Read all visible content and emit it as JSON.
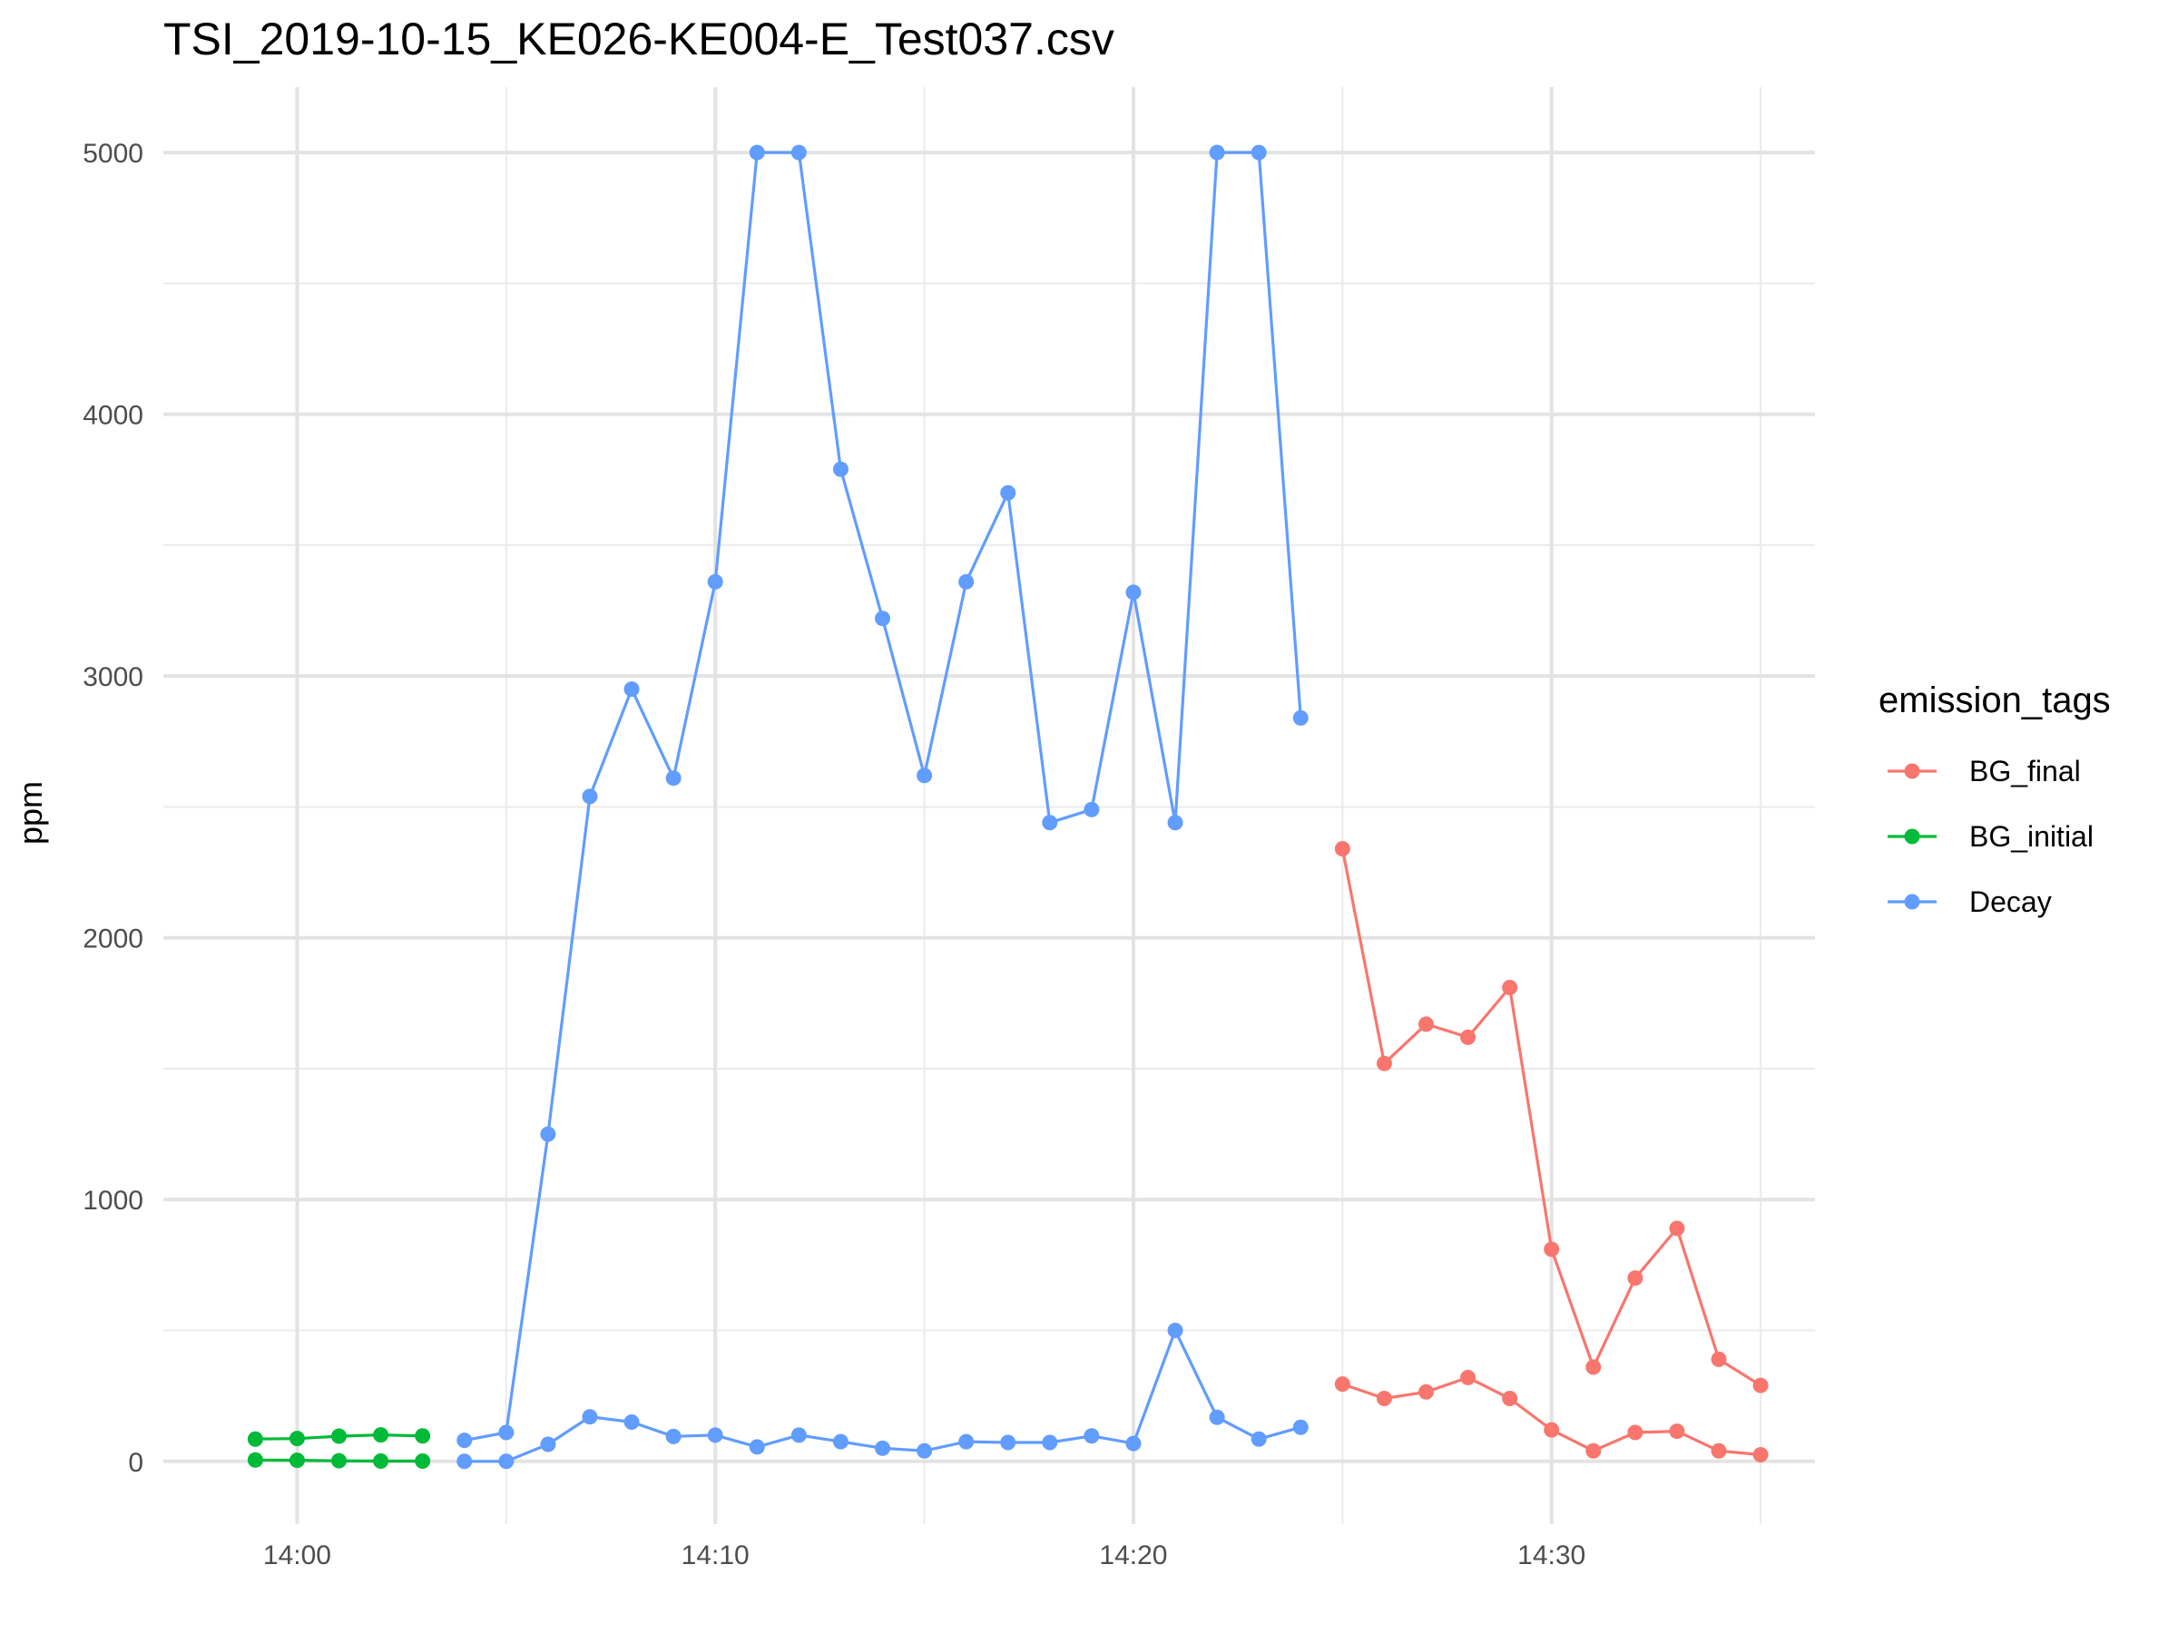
{
  "chart_data": {
    "type": "line",
    "title": "TSI_2019-10-15_KE026-KE004-E_Test037.csv",
    "xlabel": "",
    "ylabel": "ppm",
    "x_ticks": [
      "14:00",
      "14:10",
      "14:20",
      "14:30"
    ],
    "x_tick_minutes": [
      0,
      10,
      20,
      30
    ],
    "xlim_minutes": [
      -3.2,
      36.3
    ],
    "y_ticks": [
      0,
      1000,
      2000,
      3000,
      4000,
      5000
    ],
    "ylim": [
      -240,
      5250
    ],
    "grid": true,
    "legend": {
      "title": "emission_tags",
      "position": "right"
    },
    "colors": {
      "BG_final": "#F8766D",
      "BG_initial": "#00BA38",
      "Decay": "#619CFF"
    },
    "series": [
      {
        "name": "BG_initial",
        "color": "#00BA38",
        "x": [
          -1,
          0,
          1,
          2,
          3
        ],
        "y": [
          85,
          87,
          96,
          101,
          97
        ]
      },
      {
        "name": "BG_initial",
        "color": "#00BA38",
        "x": [
          -1,
          0,
          1,
          2,
          3
        ],
        "y": [
          5,
          4,
          2,
          1,
          1
        ]
      },
      {
        "name": "Decay",
        "color": "#619CFF",
        "x": [
          4,
          5,
          6,
          7,
          8,
          9,
          10,
          11,
          12,
          13,
          14,
          15,
          16,
          17,
          18,
          19,
          20,
          21,
          22,
          23,
          24
        ],
        "y": [
          80,
          110,
          1250,
          2540,
          2950,
          2610,
          3360,
          5000,
          5000,
          3790,
          3220,
          2620,
          3360,
          3700,
          2440,
          2490,
          3320,
          2440,
          5000,
          5000,
          2840
        ]
      },
      {
        "name": "Decay",
        "color": "#619CFF",
        "x": [
          4,
          5,
          6,
          7,
          8,
          9,
          10,
          11,
          12,
          13,
          14,
          15,
          16,
          17,
          18,
          19,
          20,
          21,
          22,
          23,
          24
        ],
        "y": [
          0,
          0,
          65,
          170,
          150,
          95,
          100,
          55,
          100,
          75,
          50,
          40,
          75,
          72,
          72,
          97,
          68,
          500,
          168,
          85,
          130
        ]
      },
      {
        "name": "BG_final",
        "color": "#F8766D",
        "x": [
          25,
          26,
          27,
          28,
          29,
          30,
          31,
          32,
          33,
          34,
          35
        ],
        "y": [
          2340,
          1520,
          1670,
          1620,
          1810,
          810,
          360,
          700,
          890,
          390,
          290
        ]
      },
      {
        "name": "BG_final",
        "color": "#F8766D",
        "x": [
          25,
          26,
          27,
          28,
          29,
          30,
          31,
          32,
          33,
          34,
          35
        ],
        "y": [
          295,
          240,
          265,
          320,
          240,
          120,
          40,
          110,
          115,
          40,
          25
        ]
      }
    ]
  }
}
